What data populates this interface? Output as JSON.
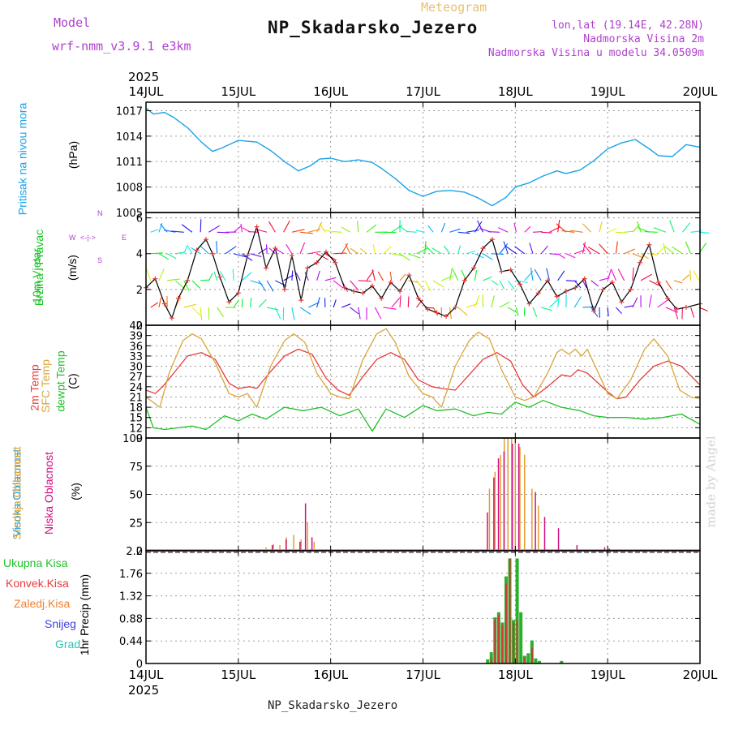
{
  "header": {
    "model_label": "Model",
    "model_name": "wrf-nmm_v3.9.1 e3km",
    "meteogram_label": "Meteogram",
    "station_title": "NP_Skadarsko_Jezero",
    "lonlat": "lon,lat (19.14E, 42.28N)",
    "elevation": "Nadmorska Visina 2m",
    "model_elevation": "Nadmorska Visina u modelu 34.0509m",
    "credit": "made by Angel",
    "bottom_station": "NP_Skadarsko_Jezero"
  },
  "colors": {
    "pressure": "#1aa3e8",
    "temp2m": "#e83a3a",
    "sfc": "#d9a53a",
    "dewpt": "#22c02a",
    "wind_line": "#000000",
    "wind_marker": "#e83a3a",
    "cloud_high": "#1aa3e8",
    "cloud_mid": "#e0a030",
    "cloud_low": "#d01080",
    "precip_total": "#2ab02a",
    "precip_conv": "#d03a3a",
    "precip_frozen": "#f08030",
    "precip_snow": "#4040e0",
    "precip_graupel": "#30c0b0"
  },
  "chart_data": [
    {
      "type": "line",
      "name": "pressure",
      "ylabel_parts": [
        "Pritisak na nivou mora",
        "(hPa)"
      ],
      "x_dates": [
        "14JUL",
        "15JUL",
        "16JUL",
        "17JUL",
        "18JUL",
        "19JUL",
        "20JUL"
      ],
      "x_year": "2025",
      "ylim": [
        1005,
        1018
      ],
      "yticks": [
        1005,
        1008,
        1011,
        1014,
        1017
      ],
      "series": [
        {
          "name": "Mean sea level pressure",
          "x_days": [
            0,
            0.08,
            0.2,
            0.3,
            0.45,
            0.6,
            0.72,
            0.82,
            1.0,
            1.2,
            1.35,
            1.5,
            1.65,
            1.78,
            1.88,
            2.0,
            2.15,
            2.3,
            2.45,
            2.55,
            2.7,
            2.85,
            3.0,
            3.15,
            3.3,
            3.45,
            3.6,
            3.75,
            3.9,
            4.0,
            4.15,
            4.3,
            4.45,
            4.55,
            4.7,
            4.85,
            5.0,
            5.15,
            5.3,
            5.45,
            5.55,
            5.7,
            5.85,
            6.0
          ],
          "values": [
            1017.3,
            1016.6,
            1016.8,
            1016.2,
            1015.0,
            1013.3,
            1012.2,
            1012.6,
            1013.5,
            1013.3,
            1012.3,
            1011.0,
            1009.9,
            1010.5,
            1011.3,
            1011.4,
            1011.0,
            1011.2,
            1010.9,
            1010.2,
            1009.0,
            1007.6,
            1006.9,
            1007.5,
            1007.6,
            1007.4,
            1006.7,
            1005.8,
            1006.8,
            1008.0,
            1008.5,
            1009.3,
            1009.9,
            1009.6,
            1010.0,
            1011.1,
            1012.5,
            1013.2,
            1013.6,
            1012.5,
            1011.7,
            1011.6,
            1013.0,
            1012.7
          ]
        }
      ]
    },
    {
      "type": "line",
      "name": "wind",
      "ylabel_parts": [
        "10m Vjetar",
        "Brzina i Pravac",
        "(m/s)"
      ],
      "compass": {
        "n": "N",
        "s": "S",
        "w": "W",
        "e": "E",
        "arrows": "<-|->"
      },
      "ylim": [
        0,
        6.3
      ],
      "yticks": [
        0,
        2,
        4,
        6
      ],
      "series": [
        {
          "name": "10m wind speed",
          "x_days": [
            0,
            0.1,
            0.2,
            0.28,
            0.35,
            0.45,
            0.55,
            0.65,
            0.72,
            0.8,
            0.9,
            1.0,
            1.1,
            1.2,
            1.3,
            1.4,
            1.5,
            1.58,
            1.68,
            1.75,
            1.85,
            1.95,
            2.05,
            2.15,
            2.25,
            2.35,
            2.45,
            2.55,
            2.65,
            2.75,
            2.85,
            2.95,
            3.05,
            3.15,
            3.25,
            3.35,
            3.45,
            3.55,
            3.65,
            3.75,
            3.85,
            3.95,
            4.05,
            4.15,
            4.25,
            4.35,
            4.45,
            4.55,
            4.65,
            4.75,
            4.85,
            4.95,
            5.05,
            5.15,
            5.25,
            5.35,
            5.45,
            5.55,
            5.65,
            5.75,
            5.85,
            6.0
          ],
          "values": [
            2.1,
            2.6,
            1.2,
            0.4,
            1.5,
            2.5,
            4.2,
            4.8,
            4.0,
            2.7,
            1.3,
            1.8,
            3.9,
            5.5,
            3.2,
            4.3,
            2.0,
            3.9,
            1.4,
            3.2,
            3.5,
            4.1,
            3.5,
            2.1,
            1.9,
            1.8,
            2.2,
            1.5,
            2.4,
            1.9,
            2.8,
            1.5,
            0.9,
            0.7,
            0.5,
            1.0,
            2.5,
            3.2,
            4.3,
            4.8,
            3.0,
            3.1,
            2.3,
            1.2,
            1.8,
            2.5,
            1.6,
            1.9,
            2.1,
            2.6,
            0.8,
            2.0,
            2.4,
            1.3,
            2.0,
            3.5,
            4.5,
            2.4,
            1.5,
            0.9,
            1.0,
            1.2
          ]
        }
      ]
    },
    {
      "type": "line",
      "name": "temperature",
      "ylabel_parts": [
        "2m Temp",
        "SFC Temp",
        "dewpt Temp",
        "(C)"
      ],
      "ylim": [
        9,
        42
      ],
      "yticks": [
        9,
        12,
        15,
        18,
        21,
        24,
        27,
        30,
        33,
        36,
        39,
        42
      ],
      "series": [
        {
          "name": "2m Temp",
          "x_days": [
            0,
            0.1,
            0.18,
            0.3,
            0.45,
            0.6,
            0.75,
            0.9,
            1.0,
            1.12,
            1.2,
            1.35,
            1.5,
            1.65,
            1.8,
            1.95,
            2.08,
            2.2,
            2.35,
            2.5,
            2.65,
            2.8,
            2.95,
            3.1,
            3.2,
            3.35,
            3.5,
            3.65,
            3.8,
            3.95,
            4.08,
            4.2,
            4.35,
            4.5,
            4.6,
            4.68,
            4.78,
            4.88,
            5.0,
            5.1,
            5.2,
            5.35,
            5.5,
            5.65,
            5.8,
            6.0
          ],
          "values": [
            23.0,
            22.0,
            24.0,
            28.0,
            33.0,
            34.0,
            32.0,
            25.0,
            23.5,
            24.0,
            23.5,
            28.5,
            33.0,
            35.0,
            33.5,
            26.5,
            23.0,
            21.5,
            27.0,
            32.0,
            34.0,
            32.0,
            26.0,
            24.0,
            23.5,
            23.0,
            27.5,
            32.0,
            34.0,
            31.5,
            24.5,
            21.0,
            24.0,
            27.5,
            27.0,
            29.0,
            28.0,
            25.5,
            22.5,
            20.5,
            21.0,
            26.0,
            30.0,
            31.5,
            30.0,
            24.5
          ]
        },
        {
          "name": "SFC Temp",
          "x_days": [
            0,
            0.15,
            0.25,
            0.4,
            0.5,
            0.6,
            0.75,
            0.9,
            1.0,
            1.1,
            1.2,
            1.35,
            1.5,
            1.6,
            1.72,
            1.85,
            2.0,
            2.1,
            2.2,
            2.35,
            2.5,
            2.6,
            2.7,
            2.85,
            3.0,
            3.1,
            3.2,
            3.35,
            3.5,
            3.6,
            3.72,
            3.85,
            4.0,
            4.1,
            4.2,
            4.35,
            4.45,
            4.5,
            4.58,
            4.65,
            4.72,
            4.78,
            4.9,
            5.0,
            5.1,
            5.25,
            5.4,
            5.5,
            5.65,
            5.78,
            5.9,
            6.0
          ],
          "values": [
            21.0,
            18.0,
            28.0,
            37.5,
            39.5,
            38.0,
            31.0,
            22.0,
            21.0,
            22.0,
            18.0,
            30.0,
            37.5,
            39.5,
            37.0,
            28.0,
            22.0,
            21.0,
            20.5,
            32.0,
            39.5,
            41.0,
            37.0,
            27.0,
            22.0,
            21.0,
            18.0,
            30.0,
            37.5,
            40.0,
            38.0,
            29.0,
            21.0,
            20.0,
            21.0,
            28.0,
            34.0,
            35.0,
            33.5,
            35.0,
            33.0,
            35.0,
            28.0,
            22.0,
            20.5,
            26.0,
            35.0,
            38.0,
            33.0,
            23.0,
            21.0,
            20.5
          ]
        },
        {
          "name": "dewpt Temp",
          "x_days": [
            0,
            0.08,
            0.2,
            0.35,
            0.5,
            0.65,
            0.85,
            1.0,
            1.15,
            1.3,
            1.5,
            1.7,
            1.9,
            2.1,
            2.3,
            2.45,
            2.6,
            2.8,
            3.0,
            3.15,
            3.35,
            3.55,
            3.7,
            3.85,
            4.0,
            4.15,
            4.3,
            4.5,
            4.7,
            4.85,
            5.0,
            5.2,
            5.4,
            5.6,
            5.8,
            6.0
          ],
          "values": [
            18.0,
            12.0,
            11.5,
            12.0,
            12.5,
            11.5,
            15.5,
            14.0,
            16.0,
            14.5,
            18.0,
            17.0,
            18.0,
            15.5,
            17.5,
            11.0,
            17.5,
            15.0,
            18.5,
            17.0,
            17.5,
            15.5,
            16.5,
            16.0,
            19.5,
            18.0,
            20.0,
            18.0,
            17.0,
            15.5,
            15.0,
            15.0,
            14.5,
            15.0,
            16.0,
            13.0
          ]
        }
      ]
    },
    {
      "type": "bar",
      "name": "cloud_cover",
      "ylabel_parts": [
        "Visoka Oblacnost",
        "Srednja Oblacnost",
        "Niska Oblacnost",
        "(%)"
      ],
      "ylim": [
        0,
        100
      ],
      "yticks": [
        0,
        25,
        50,
        75,
        100
      ],
      "series": [
        {
          "name": "Srednja Oblacnost",
          "x_days": [
            1.3,
            1.38,
            1.45,
            1.52,
            1.6,
            1.68,
            1.75,
            1.82,
            3.72,
            3.78,
            3.84,
            3.88,
            3.92,
            3.96,
            4.0,
            4.05,
            4.1,
            4.18,
            4.25
          ],
          "values": [
            3,
            6,
            5,
            12,
            14,
            10,
            25,
            8,
            55,
            70,
            85,
            100,
            100,
            100,
            100,
            92,
            85,
            55,
            40
          ]
        },
        {
          "name": "Niska Oblacnost",
          "x_days": [
            1.35,
            1.5,
            1.65,
            1.71,
            1.78,
            3.68,
            3.75,
            3.8,
            3.86,
            3.95,
            4.02,
            4.2,
            4.3,
            4.45,
            4.65,
            4.95,
            5.0
          ],
          "values": [
            5,
            10,
            8,
            42,
            12,
            34,
            65,
            82,
            88,
            95,
            95,
            52,
            30,
            20,
            5,
            3,
            2
          ]
        },
        {
          "name": "Visoka Oblacnost",
          "x_days": [],
          "values": []
        }
      ]
    },
    {
      "type": "bar",
      "name": "precipitation",
      "ylabel_parts": [
        "1hr Precip (mm)"
      ],
      "legend": [
        "Ukupna Kisa",
        "Konvek.Kisa",
        "Zaledj.Kisa",
        "Snijeg",
        "Grad"
      ],
      "ylim": [
        0,
        2.2
      ],
      "yticks": [
        0,
        0.44,
        0.88,
        1.32,
        1.76,
        2.2
      ],
      "series": [
        {
          "name": "Ukupna Kisa",
          "x_days": [
            3.7,
            3.74,
            3.78,
            3.82,
            3.86,
            3.9,
            3.94,
            3.98,
            4.02,
            4.06,
            4.1,
            4.14,
            4.18,
            4.22,
            4.26,
            4.5
          ],
          "values": [
            0.08,
            0.22,
            0.9,
            1.0,
            0.8,
            1.7,
            2.05,
            0.85,
            2.05,
            1.0,
            0.15,
            0.2,
            0.45,
            0.1,
            0.05,
            0.05
          ]
        },
        {
          "name": "Konvek.Kisa",
          "x_days": [
            3.74,
            3.78,
            3.82,
            3.86,
            3.9,
            3.94,
            3.98,
            4.02,
            4.1,
            4.18
          ],
          "values": [
            0.1,
            0.85,
            0.95,
            0.75,
            1.55,
            2.05,
            0.8,
            0.85,
            0.12,
            0.3
          ]
        }
      ]
    }
  ]
}
